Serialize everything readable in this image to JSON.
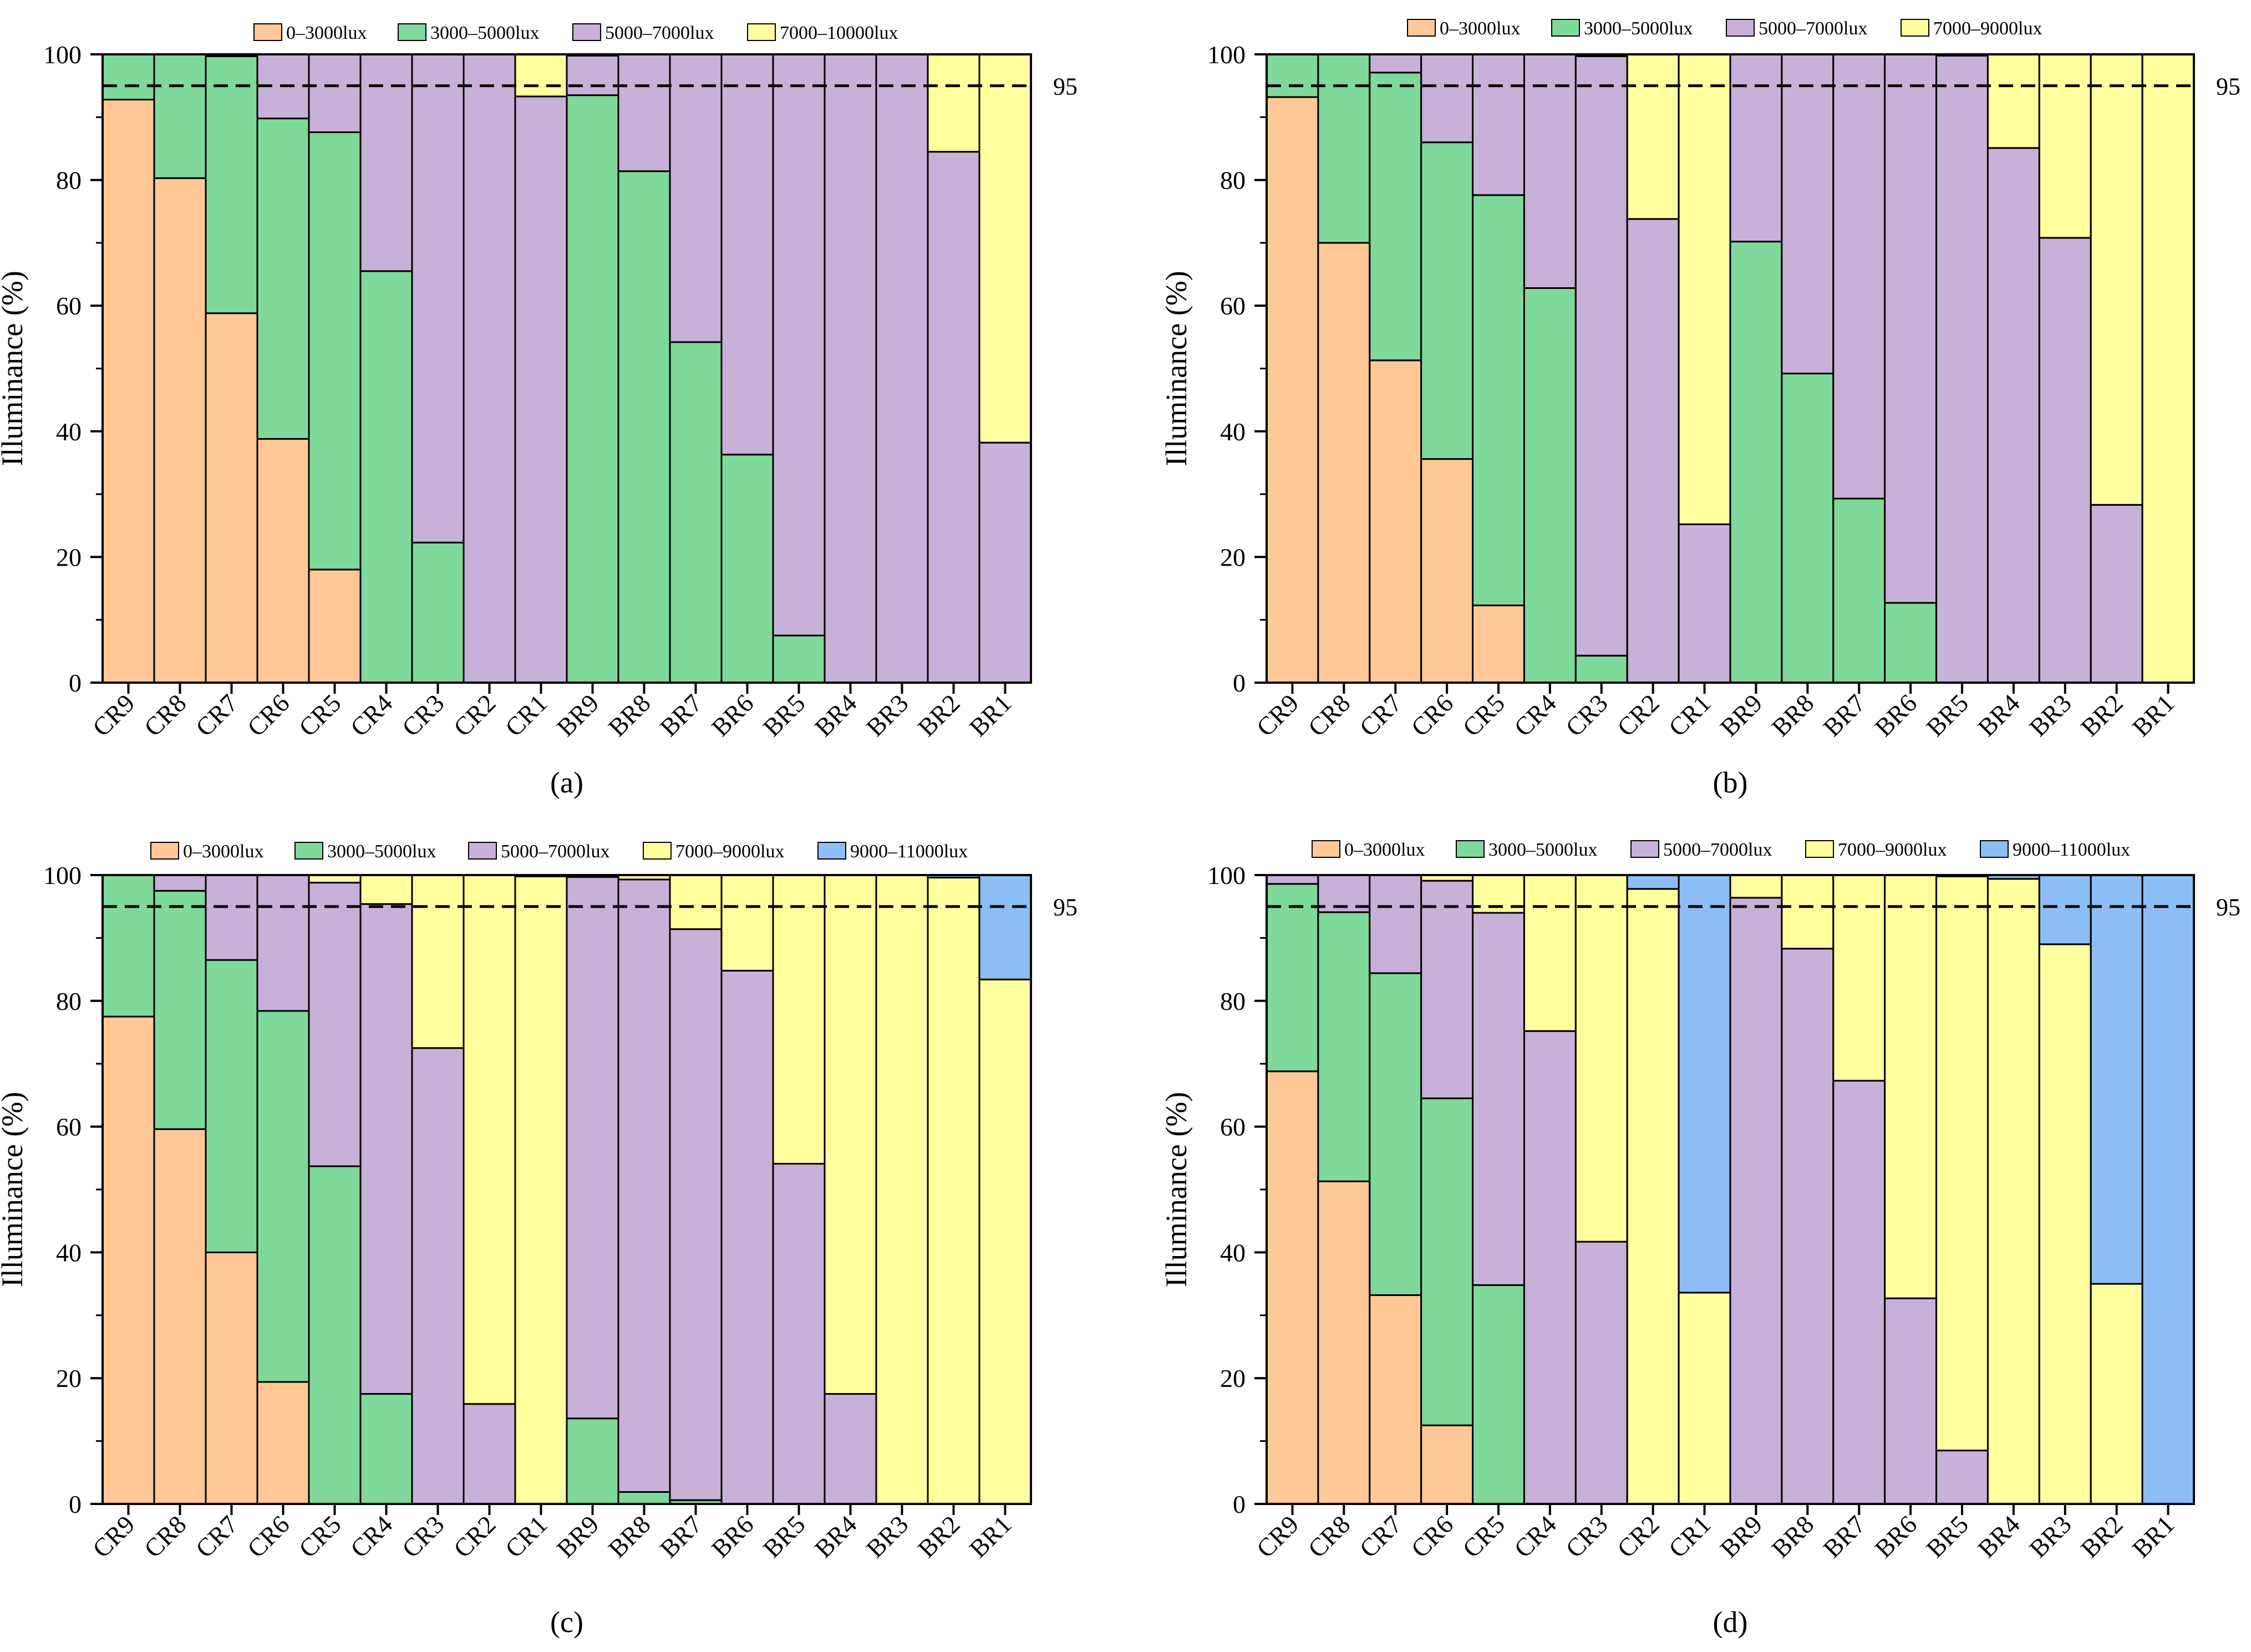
{
  "figure": {
    "colors": {
      "0–3000lux": "#FFC896",
      "3000–5000lux": "#7FD99A",
      "5000–7000lux": "#C8B1D8",
      "7000–9000lux": "#FFFF9E",
      "7000–10000lux": "#FFFF9E",
      "9000–11000lux": "#8CBDF5"
    }
  },
  "chart_data": [
    {
      "type": "bar",
      "stacked": true,
      "panel_label": "(a)",
      "ylabel": "Illuminance (%)",
      "ylim": [
        0,
        100
      ],
      "yticks": [
        "0",
        "20",
        "40",
        "60",
        "80",
        "100"
      ],
      "reference_line": {
        "value": 95,
        "label": "95"
      },
      "categories": [
        "CR9",
        "CR8",
        "CR7",
        "CR6",
        "CR5",
        "CR4",
        "CR3",
        "CR2",
        "CR1",
        "BR9",
        "BR8",
        "BR7",
        "BR6",
        "BR5",
        "BR4",
        "BR3",
        "BR2",
        "BR1"
      ],
      "series": [
        {
          "name": "0–3000lux",
          "values": [
            92.8,
            80.3,
            58.8,
            38.8,
            18.0,
            0,
            0,
            0,
            0,
            0,
            0,
            0,
            0,
            0,
            0,
            0,
            0,
            0
          ]
        },
        {
          "name": "3000–5000lux",
          "values": [
            7.2,
            19.7,
            40.9,
            51.0,
            69.6,
            65.5,
            22.3,
            0,
            0,
            93.5,
            81.4,
            54.2,
            36.3,
            7.5,
            0,
            0,
            0,
            0
          ]
        },
        {
          "name": "5000–7000lux",
          "values": [
            0,
            0,
            0.3,
            10.2,
            12.4,
            34.5,
            77.7,
            100,
            93.3,
            6.3,
            18.6,
            45.8,
            63.7,
            92.5,
            100,
            100,
            84.5,
            38.2
          ]
        },
        {
          "name": "7000–10000lux",
          "values": [
            0,
            0,
            0,
            0,
            0,
            0,
            0,
            0,
            6.7,
            0.2,
            0,
            0,
            0,
            0,
            0,
            0,
            15.5,
            61.8
          ]
        }
      ]
    },
    {
      "type": "bar",
      "stacked": true,
      "panel_label": "(b)",
      "ylabel": "Illuminance (%)",
      "ylim": [
        0,
        100
      ],
      "yticks": [
        "0",
        "20",
        "40",
        "60",
        "80",
        "100"
      ],
      "reference_line": {
        "value": 95,
        "label": "95"
      },
      "categories": [
        "CR9",
        "CR8",
        "CR7",
        "CR6",
        "CR5",
        "CR4",
        "CR3",
        "CR2",
        "CR1",
        "BR9",
        "BR8",
        "BR7",
        "BR6",
        "BR5",
        "BR4",
        "BR3",
        "BR2",
        "BR1"
      ],
      "series": [
        {
          "name": "0–3000lux",
          "values": [
            93.2,
            70.0,
            51.3,
            35.6,
            12.3,
            0,
            0,
            0,
            0,
            0,
            0,
            0,
            0,
            0,
            0,
            0,
            0,
            0
          ]
        },
        {
          "name": "3000–5000lux",
          "values": [
            6.8,
            30.0,
            45.8,
            50.4,
            65.3,
            62.8,
            4.3,
            0,
            0,
            70.2,
            49.2,
            29.3,
            12.7,
            0,
            0,
            0,
            0,
            0
          ]
        },
        {
          "name": "5000–7000lux",
          "values": [
            0,
            0,
            2.9,
            14.0,
            22.4,
            37.2,
            95.4,
            73.8,
            25.2,
            29.8,
            50.8,
            70.7,
            87.3,
            99.8,
            85.1,
            70.8,
            28.3,
            0
          ]
        },
        {
          "name": "7000–9000lux",
          "values": [
            0,
            0,
            0,
            0,
            0,
            0,
            0.3,
            26.2,
            74.8,
            0,
            0,
            0,
            0,
            0.2,
            14.9,
            29.2,
            71.7,
            100
          ]
        }
      ]
    },
    {
      "type": "bar",
      "stacked": true,
      "panel_label": "(c)",
      "ylabel": "Illuminance (%)",
      "ylim": [
        0,
        100
      ],
      "yticks": [
        "0",
        "20",
        "40",
        "60",
        "80",
        "100"
      ],
      "reference_line": {
        "value": 95,
        "label": "95"
      },
      "categories": [
        "CR9",
        "CR8",
        "CR7",
        "CR6",
        "CR5",
        "CR4",
        "CR3",
        "CR2",
        "CR1",
        "BR9",
        "BR8",
        "BR7",
        "BR6",
        "BR5",
        "BR4",
        "BR3",
        "BR2",
        "BR1"
      ],
      "series": [
        {
          "name": "0–3000lux",
          "values": [
            77.5,
            59.6,
            40.0,
            19.4,
            0,
            0,
            0,
            0,
            0,
            0,
            0,
            0,
            0,
            0,
            0,
            0,
            0,
            0
          ]
        },
        {
          "name": "3000–5000lux",
          "values": [
            22.5,
            37.9,
            46.5,
            59.0,
            53.7,
            17.5,
            0,
            0,
            0,
            13.6,
            1.9,
            0.6,
            0,
            0,
            0,
            0,
            0,
            0
          ]
        },
        {
          "name": "5000–7000lux",
          "values": [
            0,
            2.5,
            13.5,
            21.6,
            45.1,
            77.9,
            72.5,
            15.9,
            0,
            86.1,
            97.4,
            90.8,
            84.8,
            54.1,
            17.5,
            0,
            0,
            0
          ]
        },
        {
          "name": "7000–9000lux",
          "values": [
            0,
            0,
            0,
            0,
            1.2,
            4.6,
            27.5,
            84.1,
            99.8,
            0.3,
            0.7,
            8.6,
            15.2,
            45.9,
            82.5,
            100,
            99.6,
            83.4
          ]
        },
        {
          "name": "9000–11000lux",
          "values": [
            0,
            0,
            0,
            0,
            0,
            0,
            0,
            0,
            0.2,
            0,
            0,
            0,
            0,
            0,
            0,
            0,
            0.4,
            16.6
          ]
        }
      ]
    },
    {
      "type": "bar",
      "stacked": true,
      "panel_label": "(d)",
      "ylabel": "Illuminance (%)",
      "ylim": [
        0,
        100
      ],
      "yticks": [
        "0",
        "20",
        "40",
        "60",
        "80",
        "100"
      ],
      "reference_line": {
        "value": 95,
        "label": "95"
      },
      "categories": [
        "CR9",
        "CR8",
        "CR7",
        "CR6",
        "CR5",
        "CR4",
        "CR3",
        "CR2",
        "CR1",
        "BR9",
        "BR8",
        "BR7",
        "BR6",
        "BR5",
        "BR4",
        "BR3",
        "BR2",
        "BR1"
      ],
      "series": [
        {
          "name": "0–3000lux",
          "values": [
            68.8,
            51.3,
            33.2,
            12.5,
            0,
            0,
            0,
            0,
            0,
            0,
            0,
            0,
            0,
            0,
            0,
            0,
            0,
            0
          ]
        },
        {
          "name": "3000–5000lux",
          "values": [
            29.8,
            42.8,
            51.2,
            52.0,
            34.8,
            0,
            0,
            0,
            0,
            0,
            0,
            0,
            0,
            0,
            0,
            0,
            0,
            0
          ]
        },
        {
          "name": "5000–7000lux",
          "values": [
            1.4,
            5.9,
            15.6,
            34.6,
            59.2,
            75.2,
            41.7,
            0,
            0,
            96.4,
            88.3,
            67.3,
            32.7,
            8.5,
            0,
            0,
            0,
            0
          ]
        },
        {
          "name": "7000–9000lux",
          "values": [
            0,
            0,
            0,
            0.9,
            6.0,
            24.8,
            58.3,
            97.8,
            33.6,
            3.6,
            11.7,
            32.7,
            67.3,
            91.3,
            99.4,
            89.0,
            35.0,
            0
          ]
        },
        {
          "name": "9000–11000lux",
          "values": [
            0,
            0,
            0,
            0,
            0,
            0,
            0,
            2.2,
            66.4,
            0,
            0,
            0,
            0,
            0.2,
            0.6,
            11.0,
            65.0,
            100
          ]
        }
      ]
    }
  ]
}
